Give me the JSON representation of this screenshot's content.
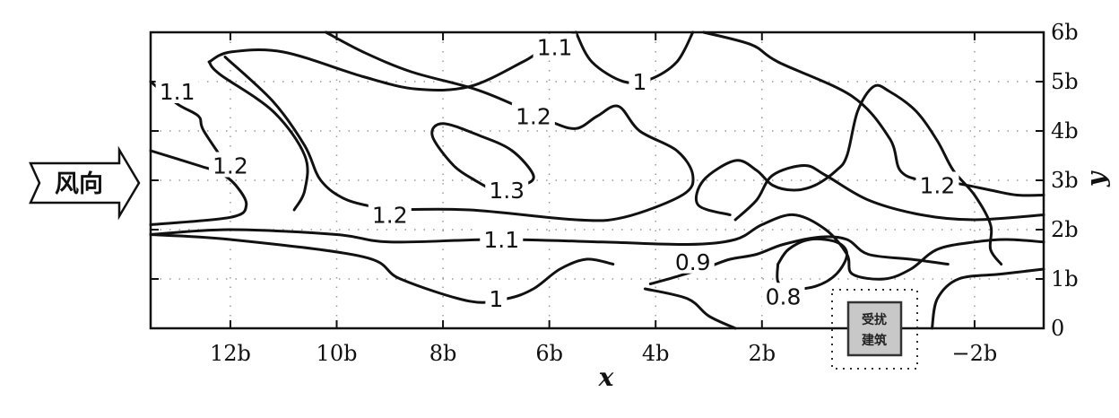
{
  "chart_data": {
    "type": "contour",
    "xlabel": "x",
    "ylabel": "y",
    "xlim": [
      13.5,
      -3.3
    ],
    "ylim": [
      0,
      6
    ],
    "x_ticks": [
      {
        "value": 12,
        "label": "12b"
      },
      {
        "value": 10,
        "label": "10b"
      },
      {
        "value": 8,
        "label": "8b"
      },
      {
        "value": 6,
        "label": "6b"
      },
      {
        "value": 4,
        "label": "4b"
      },
      {
        "value": 2,
        "label": "2b"
      },
      {
        "value": -2,
        "label": "−2b"
      }
    ],
    "y_ticks": [
      {
        "value": 0,
        "label": "0"
      },
      {
        "value": 1,
        "label": "1b"
      },
      {
        "value": 2,
        "label": "2b"
      },
      {
        "value": 3,
        "label": "3b"
      },
      {
        "value": 4,
        "label": "4b"
      },
      {
        "value": 5,
        "label": "5b"
      },
      {
        "value": 6,
        "label": "6b"
      }
    ],
    "grid": true,
    "wind_direction_label": "风向",
    "disturbing_building_label": [
      "受扰",
      "建筑"
    ],
    "contour_labels": [
      {
        "text": "1.1",
        "x": 13.0,
        "y": 4.8
      },
      {
        "text": "1.1",
        "x": 5.9,
        "y": 5.7
      },
      {
        "text": "1",
        "x": 4.3,
        "y": 5.0
      },
      {
        "text": "1.2",
        "x": 6.3,
        "y": 4.3
      },
      {
        "text": "1.2",
        "x": 12.0,
        "y": 3.3
      },
      {
        "text": "1.3",
        "x": 6.8,
        "y": 2.8
      },
      {
        "text": "1.2",
        "x": 9.0,
        "y": 2.3
      },
      {
        "text": "1.2",
        "x": -1.3,
        "y": 2.9
      },
      {
        "text": "1.1",
        "x": 6.9,
        "y": 1.8
      },
      {
        "text": "0.9",
        "x": 3.3,
        "y": 1.35
      },
      {
        "text": "0.8",
        "x": 1.6,
        "y": 0.65
      },
      {
        "text": "1",
        "x": 7.0,
        "y": 0.6
      }
    ],
    "contours": [
      {
        "level": "1.1",
        "points": [
          [
            13.5,
            5.0
          ],
          [
            13.0,
            4.55
          ],
          [
            12.6,
            4.3
          ],
          [
            12.5,
            4.0
          ],
          [
            12.0,
            3.2
          ]
        ]
      },
      {
        "level": "1.1",
        "points": [
          [
            12.4,
            5.4
          ],
          [
            12.0,
            5.6
          ],
          [
            11.0,
            5.6
          ],
          [
            9.5,
            5.1
          ],
          [
            8.5,
            4.85
          ],
          [
            7.5,
            4.9
          ],
          [
            6.5,
            5.4
          ],
          [
            6.2,
            5.6
          ],
          [
            5.8,
            5.8
          ],
          [
            5.5,
            6.0
          ]
        ]
      },
      {
        "level": "1.1",
        "points": [
          [
            12.4,
            5.4
          ],
          [
            12.2,
            5.15
          ],
          [
            11.2,
            4.4
          ],
          [
            10.6,
            3.5
          ],
          [
            10.6,
            2.8
          ],
          [
            10.8,
            2.4
          ]
        ]
      },
      {
        "level": "1.1",
        "points": [
          [
            13.5,
            1.9
          ],
          [
            12.0,
            2.0
          ],
          [
            10.0,
            1.9
          ],
          [
            9.0,
            1.75
          ],
          [
            7.0,
            1.8
          ],
          [
            5.0,
            1.75
          ],
          [
            3.4,
            1.7
          ],
          [
            2.5,
            1.8
          ],
          [
            2.0,
            2.1
          ],
          [
            1.4,
            2.3
          ],
          [
            0.8,
            2.0
          ],
          [
            0.4,
            1.5
          ],
          [
            0.3,
            1.1
          ],
          [
            -0.3,
            1.0
          ],
          [
            -0.8,
            1.2
          ],
          [
            -1.3,
            1.6
          ],
          [
            -2.0,
            1.75
          ],
          [
            -2.6,
            1.8
          ],
          [
            -3.3,
            1.75
          ]
        ]
      },
      {
        "level": "1",
        "points": [
          [
            5.5,
            6.0
          ],
          [
            5.2,
            5.4
          ],
          [
            4.6,
            5.0
          ],
          [
            4.1,
            5.05
          ],
          [
            3.6,
            5.4
          ],
          [
            3.3,
            6.0
          ]
        ]
      },
      {
        "level": "1.2",
        "points": [
          [
            10.2,
            6.0
          ],
          [
            9.5,
            5.6
          ],
          [
            8.6,
            5.2
          ],
          [
            7.4,
            4.85
          ],
          [
            6.6,
            4.5
          ],
          [
            6.0,
            4.2
          ],
          [
            5.5,
            4.05
          ],
          [
            5.1,
            4.3
          ],
          [
            4.7,
            4.5
          ],
          [
            4.3,
            4.0
          ],
          [
            3.6,
            3.6
          ],
          [
            3.3,
            3.1
          ],
          [
            3.5,
            2.7
          ],
          [
            4.6,
            2.25
          ],
          [
            5.5,
            2.2
          ],
          [
            7.5,
            2.4
          ],
          [
            9.0,
            2.4
          ]
        ]
      },
      {
        "level": "1.2",
        "points": [
          [
            9.0,
            2.4
          ],
          [
            9.8,
            2.6
          ],
          [
            10.3,
            3.0
          ],
          [
            10.6,
            3.7
          ],
          [
            11.2,
            4.6
          ],
          [
            12.1,
            5.5
          ]
        ]
      },
      {
        "level": "1.2",
        "points": [
          [
            13.5,
            3.6
          ],
          [
            12.6,
            3.3
          ],
          [
            12.2,
            3.15
          ],
          [
            11.9,
            2.9
          ],
          [
            11.7,
            2.5
          ],
          [
            12.0,
            2.25
          ],
          [
            13.5,
            2.1
          ]
        ]
      },
      {
        "level": "1.3",
        "points": [
          [
            7.4,
            3.0
          ],
          [
            7.8,
            3.3
          ],
          [
            8.2,
            3.9
          ],
          [
            8.0,
            4.15
          ],
          [
            7.3,
            3.9
          ],
          [
            6.7,
            3.6
          ],
          [
            6.3,
            3.1
          ],
          [
            6.5,
            2.9
          ],
          [
            7.0,
            2.8
          ],
          [
            7.4,
            3.0
          ]
        ]
      },
      {
        "level": "1.2",
        "points": [
          [
            3.1,
            6.0
          ],
          [
            2.2,
            5.75
          ],
          [
            1.7,
            5.4
          ],
          [
            0.3,
            4.7
          ],
          [
            -0.4,
            3.85
          ],
          [
            -0.6,
            3.2
          ],
          [
            -1.0,
            3.0
          ],
          [
            -1.6,
            2.95
          ],
          [
            -2.3,
            2.8
          ],
          [
            -2.8,
            2.7
          ],
          [
            -3.3,
            2.7
          ]
        ]
      },
      {
        "level": "1.2",
        "points": [
          [
            2.5,
            2.2
          ],
          [
            2.1,
            2.6
          ],
          [
            1.8,
            3.1
          ],
          [
            1.2,
            3.3
          ],
          [
            0.8,
            3.1
          ],
          [
            0.0,
            2.6
          ],
          [
            -1.0,
            2.3
          ],
          [
            -2.0,
            2.2
          ],
          [
            -3.3,
            2.3
          ]
        ]
      },
      {
        "level": "1.2",
        "points": [
          [
            -2.5,
            1.3
          ],
          [
            -2.3,
            1.6
          ],
          [
            -2.3,
            2.1
          ],
          [
            -2.0,
            2.7
          ],
          [
            -1.6,
            3.2
          ],
          [
            -1.3,
            3.8
          ],
          [
            -0.9,
            4.4
          ],
          [
            -0.4,
            4.8
          ],
          [
            -0.1,
            4.9
          ],
          [
            0.2,
            4.4
          ],
          [
            0.4,
            3.5
          ],
          [
            0.6,
            3.2
          ],
          [
            1.0,
            2.9
          ],
          [
            1.4,
            2.8
          ],
          [
            1.8,
            2.9
          ],
          [
            2.1,
            3.2
          ],
          [
            2.5,
            3.4
          ],
          [
            3.1,
            3.0
          ],
          [
            3.2,
            2.5
          ],
          [
            2.6,
            2.3
          ]
        ]
      },
      {
        "level": "0.9",
        "points": [
          [
            4.1,
            0.9
          ],
          [
            3.6,
            1.05
          ],
          [
            3.0,
            1.25
          ],
          [
            2.6,
            1.4
          ],
          [
            2.1,
            1.5
          ],
          [
            1.6,
            1.7
          ],
          [
            0.9,
            1.85
          ],
          [
            0.4,
            1.8
          ],
          [
            0.0,
            1.5
          ],
          [
            -0.8,
            1.4
          ],
          [
            -1.5,
            1.3
          ]
        ]
      },
      {
        "level": "0.9",
        "points": [
          [
            2.5,
            0.0
          ],
          [
            3.0,
            0.25
          ],
          [
            3.4,
            0.6
          ],
          [
            4.2,
            0.8
          ]
        ]
      },
      {
        "level": "0.8",
        "points": [
          [
            1.7,
            1.3
          ],
          [
            1.7,
            0.95
          ],
          [
            1.5,
            0.8
          ],
          [
            1.0,
            0.85
          ],
          [
            0.6,
            1.1
          ],
          [
            0.4,
            1.5
          ],
          [
            0.6,
            1.75
          ],
          [
            1.1,
            1.8
          ],
          [
            1.5,
            1.6
          ],
          [
            1.7,
            1.3
          ]
        ]
      },
      {
        "level": "1",
        "points": [
          [
            13.5,
            1.9
          ],
          [
            12.0,
            1.8
          ],
          [
            9.5,
            1.45
          ],
          [
            8.8,
            1.0
          ],
          [
            7.5,
            0.55
          ],
          [
            6.8,
            0.6
          ],
          [
            6.3,
            0.8
          ],
          [
            5.8,
            1.2
          ],
          [
            5.3,
            1.4
          ],
          [
            4.8,
            1.3
          ]
        ]
      },
      {
        "level": "1",
        "points": [
          [
            -1.2,
            0.0
          ],
          [
            -1.3,
            0.6
          ],
          [
            -1.7,
            1.0
          ],
          [
            -2.5,
            1.1
          ],
          [
            -3.3,
            1.2
          ]
        ]
      }
    ]
  }
}
